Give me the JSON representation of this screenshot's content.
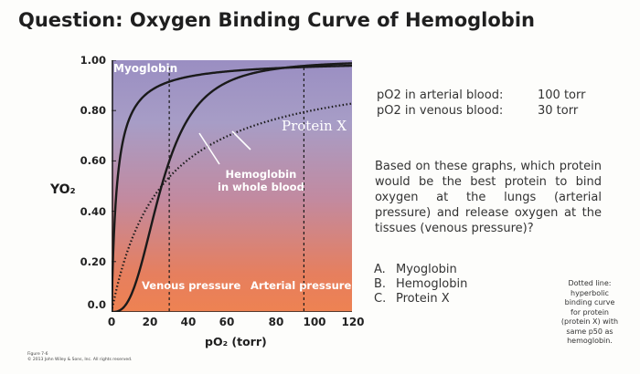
{
  "title": "Question: Oxygen Binding Curve of Hemoglobin",
  "chart_data": {
    "type": "line",
    "xlabel": "pO₂ (torr)",
    "ylabel": "YO₂",
    "xlim": [
      0,
      125
    ],
    "ylim": [
      0,
      1.0
    ],
    "x_ticks": [
      "0",
      "20",
      "40",
      "60",
      "80",
      "100",
      "120"
    ],
    "x_tick_values": [
      0,
      20,
      40,
      60,
      80,
      100,
      120
    ],
    "y_ticks": [
      "1.00",
      "0.80",
      "0.60",
      "0.40",
      "0.20",
      "0.0"
    ],
    "y_tick_values": [
      1.0,
      0.8,
      0.6,
      0.4,
      0.2,
      0.0
    ],
    "series": [
      {
        "name": "Myoglobin",
        "style": "solid",
        "hill_n": 1,
        "p50": 2.8
      },
      {
        "name": "Hemoglobin in whole blood",
        "style": "solid",
        "hill_n": 2.8,
        "p50": 26
      },
      {
        "name": "Protein X",
        "style": "dotted",
        "hill_n": 1,
        "p50": 26
      }
    ],
    "reference_lines": [
      {
        "label": "Venous pressure",
        "x": 30
      },
      {
        "label": "Arterial pressure",
        "x": 100
      }
    ],
    "labels": {
      "myoglobin": "Myoglobin",
      "protein_x": "Protein X",
      "hb_line1": "Hemoglobin",
      "hb_line2": "in whole blood",
      "venous": "Venous pressure",
      "arterial": "Arterial pressure"
    },
    "grid": false
  },
  "pressures": [
    {
      "label": "pO2 in arterial blood:",
      "value": "100 torr"
    },
    {
      "label": "pO2 in venous blood:",
      "value": "30 torr"
    }
  ],
  "question": "Based on these graphs, which protein would be the best protein to bind oxygen at the lungs (arterial pressure) and release oxygen at the tissues (venous pressure)?",
  "answers": [
    {
      "letter": "A.",
      "text": "Myoglobin"
    },
    {
      "letter": "B.",
      "text": "Hemoglobin"
    },
    {
      "letter": "C.",
      "text": "Protein X"
    }
  ],
  "note_lines": [
    "Dotted line:",
    "hyperbolic",
    "binding curve",
    "for protein",
    "(protein X) with",
    "same p50 as",
    "hemoglobin."
  ],
  "credit_lines": [
    "Figure 7-6",
    "© 2013 John Wiley & Sons, Inc. All rights reserved."
  ],
  "colors": {
    "plot_top": "#9a8ec2",
    "plot_bottom": "#ee8252",
    "curve": "#1a1a1a",
    "label": "#ffffff"
  }
}
